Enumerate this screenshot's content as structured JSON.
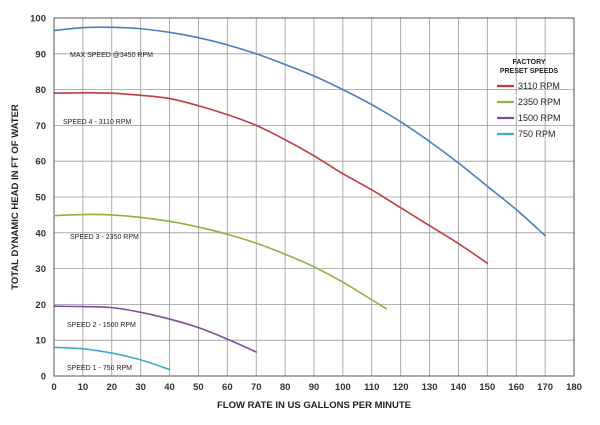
{
  "chart_data": {
    "type": "line",
    "xlabel": "FLOW RATE IN US GALLONS PER MINUTE",
    "ylabel": "TOTAL DYNAMIC HEAD IN FT OF WATER",
    "xlim": [
      0,
      180
    ],
    "ylim": [
      0,
      100
    ],
    "xticks": [
      "0",
      "10",
      "20",
      "30",
      "40",
      "50",
      "60",
      "70",
      "80",
      "90",
      "100",
      "110",
      "120",
      "130",
      "140",
      "150",
      "160",
      "170",
      "180"
    ],
    "yticks": [
      "0",
      "10",
      "20",
      "30",
      "40",
      "50",
      "60",
      "70",
      "80",
      "90",
      "100"
    ],
    "grid": true,
    "legend": {
      "title_line1": "FACTORY",
      "title_line2": "PRESET SPEEDS",
      "placement": "right"
    },
    "series": [
      {
        "name": "3110 RPM",
        "color": "#c23b40",
        "in_legend": true,
        "curve_label": "SPEED 4 - 3110 RPM",
        "x": [
          0,
          10,
          20,
          30,
          40,
          50,
          60,
          70,
          80,
          90,
          100,
          110,
          120,
          130,
          140,
          150
        ],
        "y": [
          79,
          79.1,
          79,
          78.4,
          77.5,
          75.5,
          73,
          70,
          66,
          61.5,
          56.5,
          52,
          47,
          42,
          37,
          31.5
        ]
      },
      {
        "name": "2350 RPM",
        "color": "#8ab43f",
        "in_legend": true,
        "curve_label": "SPEED 3 - 2350 RPM",
        "x": [
          0,
          10,
          20,
          30,
          40,
          50,
          60,
          70,
          80,
          90,
          100,
          110,
          115
        ],
        "y": [
          44.8,
          45.1,
          45,
          44.3,
          43.2,
          41.6,
          39.6,
          37.1,
          34,
          30.5,
          26.2,
          21.3,
          18.8
        ]
      },
      {
        "name": "1500 RPM",
        "color": "#7a4f9c",
        "in_legend": true,
        "curve_label": "SPEED 2 - 1500 RPM",
        "x": [
          0,
          10,
          20,
          30,
          40,
          50,
          60,
          70
        ],
        "y": [
          19.5,
          19.4,
          19.1,
          17.8,
          15.9,
          13.5,
          10.3,
          6.7
        ]
      },
      {
        "name": "750 RPM",
        "color": "#3cadc4",
        "in_legend": true,
        "curve_label": "SPEED 1 - 750 RPM",
        "x": [
          0,
          10,
          20,
          30,
          40
        ],
        "y": [
          8,
          7.6,
          6.4,
          4.5,
          1.8
        ]
      },
      {
        "name": "",
        "color": "#4a7ec2",
        "in_legend": false,
        "curve_label": "MAX SPEED @3450 RPM",
        "x": [
          0,
          10,
          20,
          30,
          40,
          50,
          60,
          70,
          80,
          90,
          100,
          110,
          120,
          130,
          140,
          150,
          160,
          170
        ],
        "y": [
          96.5,
          97.3,
          97.4,
          97,
          96,
          94.5,
          92.5,
          90,
          87,
          83.8,
          80,
          75.8,
          71,
          65.5,
          59.5,
          53,
          46.5,
          39.2
        ]
      }
    ]
  }
}
